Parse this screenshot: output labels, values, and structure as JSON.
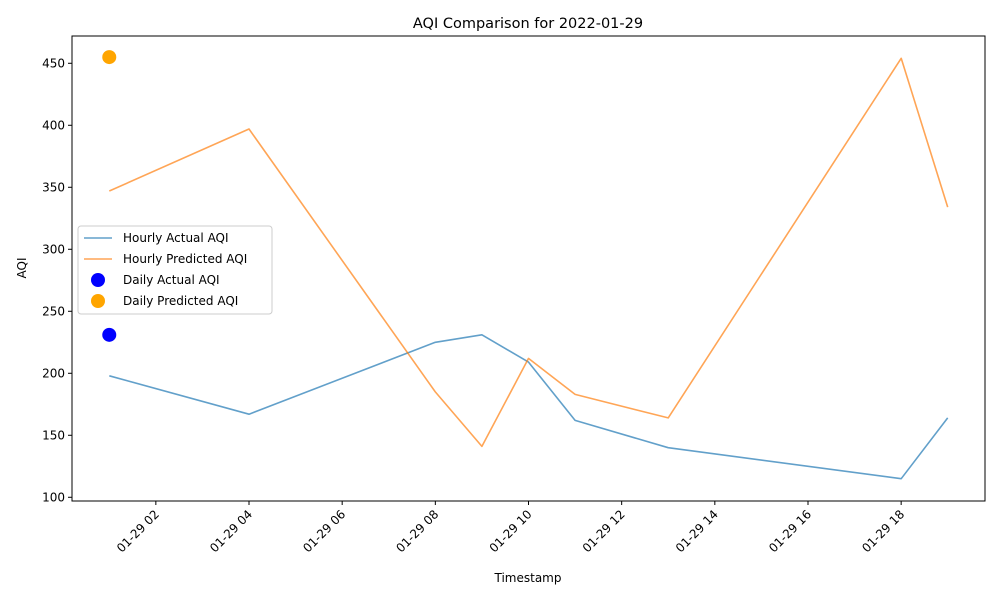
{
  "chart_data": {
    "type": "line",
    "title": "AQI Comparison for 2022-01-29",
    "xlabel": "Timestamp",
    "ylabel": "AQI",
    "x_unit": "hour of 2022-01-29",
    "xlim": [
      0.2,
      19.8
    ],
    "ylim": [
      97,
      472
    ],
    "x_ticks": [
      {
        "x": 2,
        "label": "01-29 02"
      },
      {
        "x": 4,
        "label": "01-29 04"
      },
      {
        "x": 6,
        "label": "01-29 06"
      },
      {
        "x": 8,
        "label": "01-29 08"
      },
      {
        "x": 10,
        "label": "01-29 10"
      },
      {
        "x": 12,
        "label": "01-29 12"
      },
      {
        "x": 14,
        "label": "01-29 14"
      },
      {
        "x": 16,
        "label": "01-29 16"
      },
      {
        "x": 18,
        "label": "01-29 18"
      }
    ],
    "y_ticks": [
      100,
      150,
      200,
      250,
      300,
      350,
      400,
      450
    ],
    "grid": false,
    "legend_placement": "center-left",
    "series": [
      {
        "name": "Hourly Actual AQI",
        "kind": "line",
        "color": "#1f77b4",
        "x": [
          1,
          4,
          8,
          9,
          10,
          11,
          13,
          18,
          19
        ],
        "y": [
          198,
          167,
          225,
          231,
          209,
          162,
          140,
          115,
          164
        ]
      },
      {
        "name": "Hourly Predicted AQI",
        "kind": "line",
        "color": "#ff7f0e",
        "x": [
          1,
          4,
          8,
          9,
          10,
          11,
          13,
          18,
          19
        ],
        "y": [
          347,
          397,
          185,
          141,
          212,
          183,
          164,
          454,
          334
        ]
      },
      {
        "name": "Daily Actual AQI",
        "kind": "marker",
        "color": "#0000ff",
        "x": [
          1
        ],
        "y": [
          231
        ]
      },
      {
        "name": "Daily Predicted AQI",
        "kind": "marker",
        "color": "#ffa500",
        "x": [
          1
        ],
        "y": [
          455
        ]
      }
    ]
  }
}
